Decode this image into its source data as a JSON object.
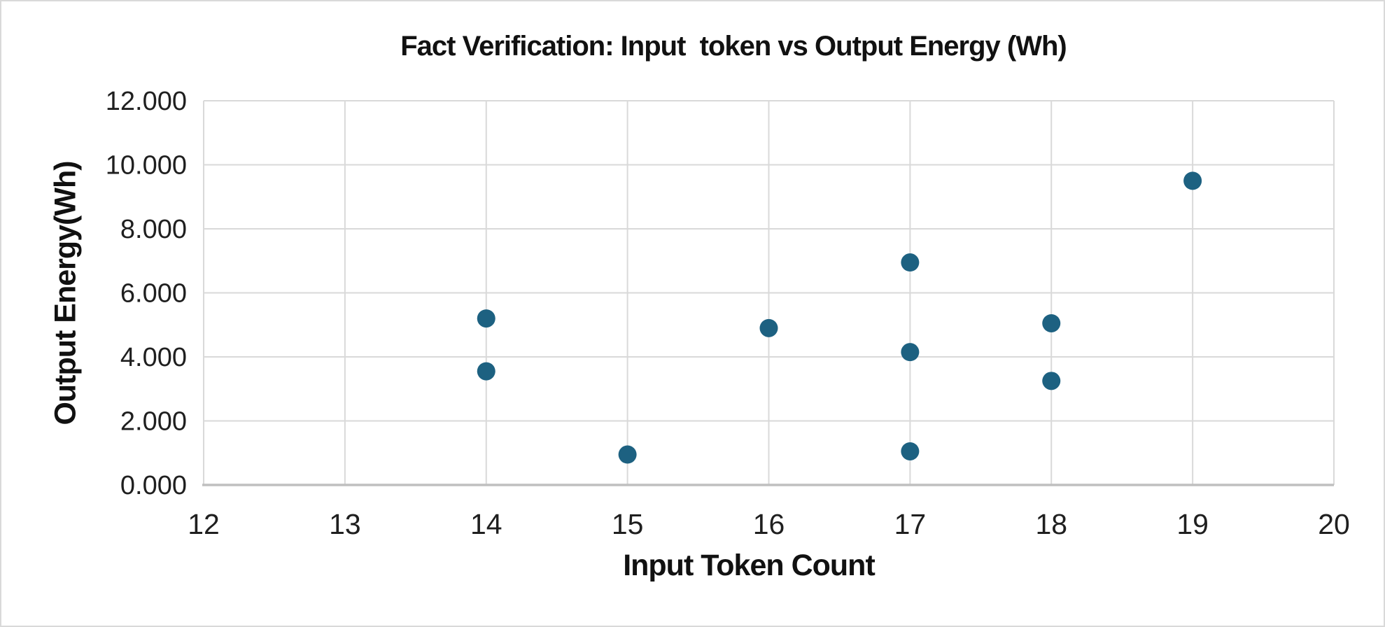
{
  "canvas": {
    "background": "#FFFFFF",
    "border_color": "#D9D9D9"
  },
  "chart_data": {
    "type": "scatter",
    "title": "Fact Verification: Input  token vs Output Energy (Wh)",
    "xlabel": "Input Token Count",
    "ylabel": "Output Energy(Wh)",
    "xlim": [
      12,
      20
    ],
    "ylim": [
      0,
      12
    ],
    "x_ticks": [
      12,
      13,
      14,
      15,
      16,
      17,
      18,
      19,
      20
    ],
    "y_ticks": [
      0,
      2,
      4,
      6,
      8,
      10,
      12
    ],
    "y_tick_labels": [
      "0.000",
      "2.000",
      "4.000",
      "6.000",
      "8.000",
      "10.000",
      "12.000"
    ],
    "grid": true,
    "legend_position": "none",
    "series": [
      {
        "name": "Output Energy (Wh)",
        "points": [
          {
            "x": 14,
            "y": 5.2
          },
          {
            "x": 14,
            "y": 3.55
          },
          {
            "x": 15,
            "y": 0.95
          },
          {
            "x": 16,
            "y": 4.9
          },
          {
            "x": 17,
            "y": 6.95
          },
          {
            "x": 17,
            "y": 4.15
          },
          {
            "x": 17,
            "y": 1.05
          },
          {
            "x": 18,
            "y": 5.05
          },
          {
            "x": 18,
            "y": 3.25
          },
          {
            "x": 19,
            "y": 9.5
          }
        ]
      }
    ],
    "marker": {
      "shape": "circle",
      "color": "#1D6181",
      "radius_px": 13
    },
    "colors": {
      "gridline": "#D9D9D9",
      "axis_line": "#BFBFBF",
      "tick_label": "#1F1F1F",
      "title": "#111111"
    }
  }
}
